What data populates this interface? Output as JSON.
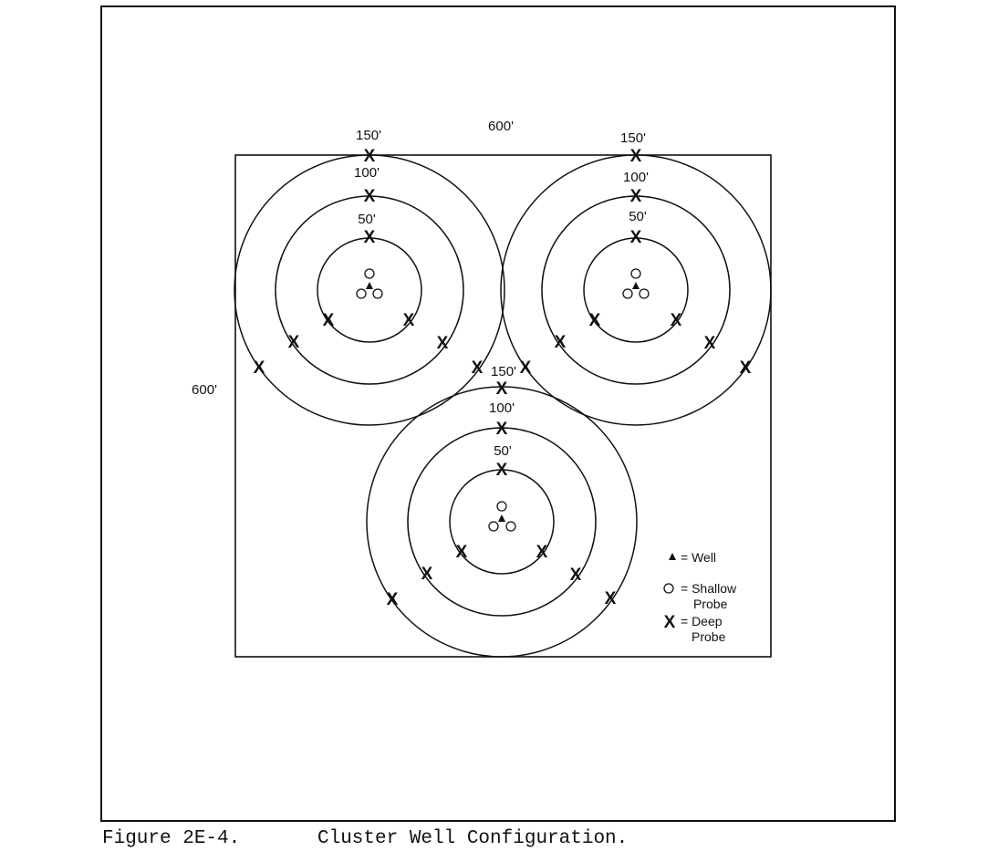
{
  "figure": {
    "caption_number": "Figure 2E-4.",
    "caption_title": "Cluster Well Configuration."
  },
  "dimensions": {
    "width_label": "600'",
    "height_label": "600'"
  },
  "cluster_labels": {
    "outer": "150'",
    "middle": "100'",
    "inner": "50'"
  },
  "clusters": [
    {
      "id": "top-left",
      "rings_ft": [
        50,
        100,
        150
      ]
    },
    {
      "id": "top-right",
      "rings_ft": [
        50,
        100,
        150
      ]
    },
    {
      "id": "bottom",
      "rings_ft": [
        50,
        100,
        150
      ]
    }
  ],
  "legend": {
    "well": "= Well",
    "shallow_probe": "= Shallow\nProbe",
    "deep_probe": "= Deep\nProbe",
    "deep_symbol": "X"
  }
}
